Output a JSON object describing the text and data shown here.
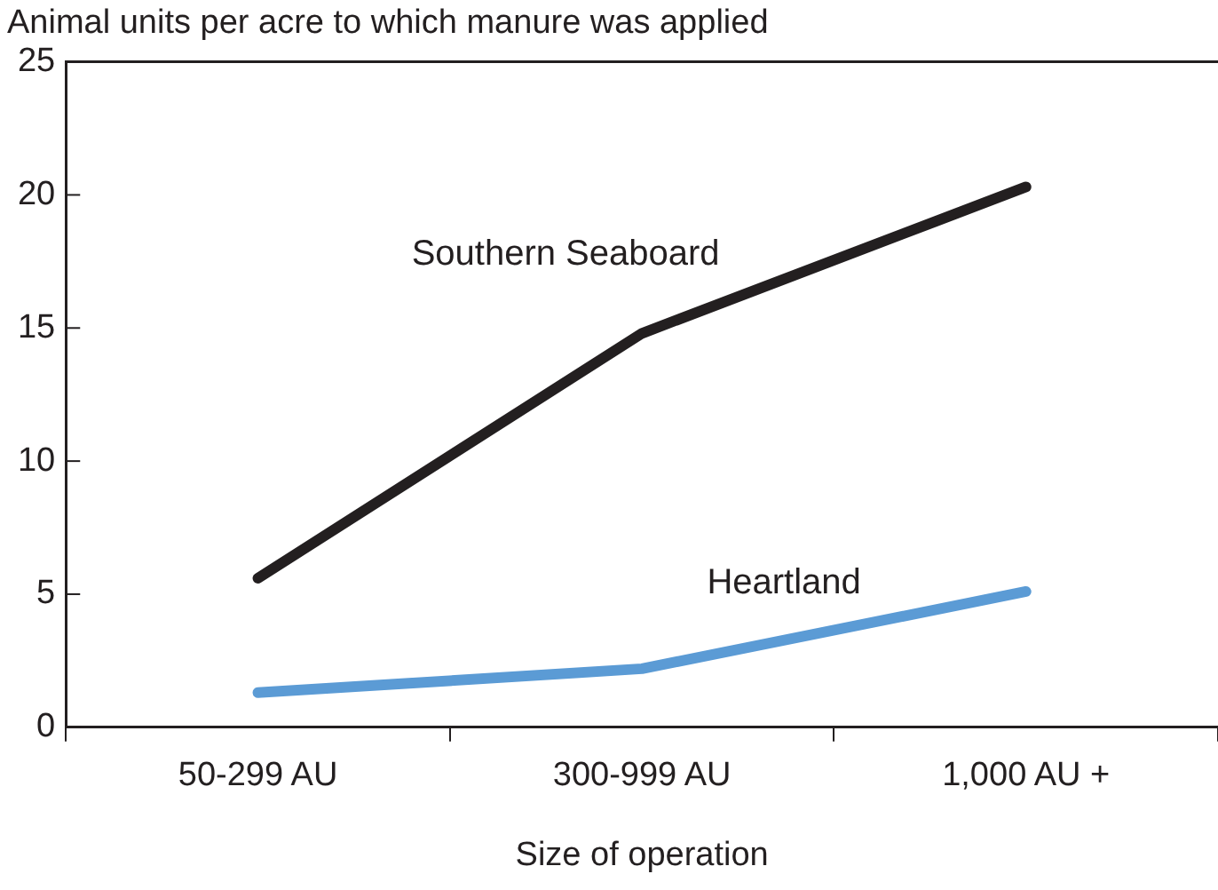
{
  "chart_data": {
    "type": "line",
    "title": "Animal units per acre to which manure was applied",
    "xlabel": "Size of operation",
    "categories": [
      "50-299 AU",
      "300-999 AU",
      "1,000 AU +"
    ],
    "series": [
      {
        "name": "Southern Seaboard",
        "color": "#231f20",
        "values": [
          5.6,
          14.8,
          20.3
        ]
      },
      {
        "name": "Heartland",
        "color": "#5b9bd5",
        "values": [
          1.3,
          2.2,
          5.1
        ]
      }
    ],
    "ylim": [
      0,
      25
    ],
    "yticks": [
      0,
      5,
      10,
      15,
      20,
      25
    ],
    "grid": false,
    "legend": false,
    "marker": "none",
    "line_style": "solid"
  }
}
